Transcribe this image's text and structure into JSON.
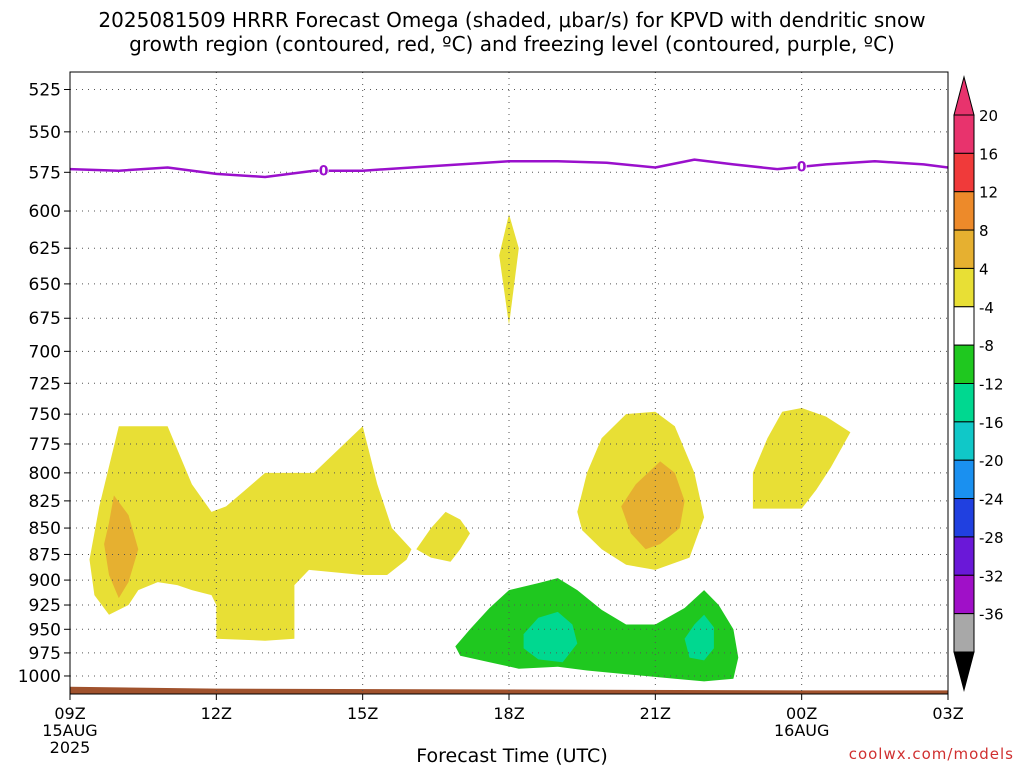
{
  "title_line1": "2025081509 HRRR Forecast Omega (shaded, μbar/s) for KPVD with dendritic snow",
  "title_line2": "growth region (contoured, red, ºC) and freezing level (contoured, purple, ºC)",
  "credit": "coolwx.com/models",
  "chart_data": {
    "type": "time-height contour",
    "xlabel": "Forecast Time (UTC)",
    "ylabel": "",
    "x_ticks": [
      "09Z",
      "12Z",
      "15Z",
      "18Z",
      "21Z",
      "00Z",
      "03Z"
    ],
    "x_tick_hours": [
      0,
      3,
      6,
      9,
      12,
      15,
      18
    ],
    "x_date_labels": [
      {
        "hour": 0,
        "lines": [
          "15AUG",
          "2025"
        ]
      },
      {
        "hour": 15,
        "lines": [
          "16AUG"
        ]
      }
    ],
    "xlim_hours": [
      0,
      18
    ],
    "y_ticks": [
      525,
      550,
      575,
      600,
      625,
      650,
      675,
      700,
      725,
      750,
      775,
      800,
      825,
      850,
      875,
      900,
      925,
      950,
      975,
      1000
    ],
    "ylim": [
      515,
      1020
    ],
    "y_scale": "log-pressure (inverted)",
    "grid": true,
    "colorbar": {
      "labels": [
        "20",
        "16",
        "12",
        "8",
        "4",
        "-4",
        "-8",
        "-12",
        "-16",
        "-20",
        "-24",
        "-28",
        "-32",
        "-36"
      ],
      "colors": [
        "#e8336d",
        "#f03a3a",
        "#ed8a2a",
        "#e6b030",
        "#e8df35",
        "#ffffff",
        "#1fc81f",
        "#00d890",
        "#10c8c8",
        "#1a90f0",
        "#2040e0",
        "#6a18d8",
        "#a010c8",
        "#a8a8a8"
      ]
    },
    "freezing_level": {
      "color": "#9a10cc",
      "label": "0",
      "points": [
        [
          0,
          573
        ],
        [
          1,
          574
        ],
        [
          2,
          572
        ],
        [
          3,
          576
        ],
        [
          4,
          578
        ],
        [
          5,
          574
        ],
        [
          6,
          574
        ],
        [
          7,
          572
        ],
        [
          8,
          570
        ],
        [
          9,
          568
        ],
        [
          10,
          568
        ],
        [
          11,
          569
        ],
        [
          12,
          572
        ],
        [
          12.8,
          567
        ],
        [
          13.6,
          570
        ],
        [
          14.5,
          573
        ],
        [
          15.5,
          570
        ],
        [
          16.5,
          568
        ],
        [
          17.5,
          570
        ],
        [
          18,
          572
        ]
      ],
      "label_hours": [
        5.2,
        15
      ]
    },
    "omega_regions": [
      {
        "value_range": "4 to 8",
        "color": "#e8df35",
        "points": [
          [
            0.4,
            880
          ],
          [
            0.6,
            830
          ],
          [
            1,
            760
          ],
          [
            2,
            760
          ],
          [
            2.5,
            810
          ],
          [
            2.9,
            835
          ],
          [
            3.2,
            830
          ],
          [
            3.6,
            815
          ],
          [
            4,
            800
          ],
          [
            5,
            800
          ],
          [
            6,
            760
          ],
          [
            6.3,
            810
          ],
          [
            6.6,
            850
          ],
          [
            7,
            870
          ],
          [
            6.9,
            880
          ],
          [
            6.5,
            895
          ],
          [
            6,
            895
          ],
          [
            4.9,
            890
          ],
          [
            4.6,
            905
          ],
          [
            4.6,
            960
          ],
          [
            4,
            962
          ],
          [
            3,
            960
          ],
          [
            3,
            925
          ],
          [
            2.9,
            915
          ],
          [
            2.5,
            910
          ],
          [
            2.2,
            905
          ],
          [
            1.8,
            902
          ],
          [
            1.4,
            910
          ],
          [
            1.2,
            925
          ],
          [
            0.8,
            935
          ],
          [
            0.5,
            915
          ]
        ]
      },
      {
        "value_range": "4 to 8",
        "color": "#e8df35",
        "points": [
          [
            7.1,
            870
          ],
          [
            7.4,
            850
          ],
          [
            7.7,
            835
          ],
          [
            8,
            842
          ],
          [
            8.2,
            855
          ],
          [
            8,
            870
          ],
          [
            7.8,
            882
          ],
          [
            7.4,
            878
          ]
        ]
      },
      {
        "value_range": "4 to 8",
        "color": "#e8df35",
        "points": [
          [
            9,
            602
          ],
          [
            9.2,
            625
          ],
          [
            9,
            680
          ],
          [
            8.8,
            630
          ]
        ]
      },
      {
        "value_range": "4 to 8",
        "color": "#e8df35",
        "points": [
          [
            10.4,
            835
          ],
          [
            10.6,
            800
          ],
          [
            10.9,
            770
          ],
          [
            11.4,
            750
          ],
          [
            12,
            748
          ],
          [
            12.4,
            760
          ],
          [
            12.8,
            800
          ],
          [
            13,
            840
          ],
          [
            12.7,
            878
          ],
          [
            12,
            890
          ],
          [
            11.4,
            885
          ],
          [
            10.9,
            870
          ],
          [
            10.5,
            852
          ]
        ]
      },
      {
        "value_range": "4 to 8",
        "color": "#e8df35",
        "points": [
          [
            14,
            800
          ],
          [
            14.3,
            770
          ],
          [
            14.6,
            748
          ],
          [
            15,
            745
          ],
          [
            15.5,
            752
          ],
          [
            16,
            765
          ],
          [
            15.6,
            795
          ],
          [
            15.3,
            815
          ],
          [
            15,
            832
          ],
          [
            14,
            832
          ]
        ]
      },
      {
        "value_range": "8 to 12",
        "color": "#e6b030",
        "points": [
          [
            0.8,
            845
          ],
          [
            0.9,
            820
          ],
          [
            1.2,
            838
          ],
          [
            1.4,
            870
          ],
          [
            1.2,
            902
          ],
          [
            1,
            918
          ],
          [
            0.8,
            895
          ],
          [
            0.7,
            865
          ]
        ]
      },
      {
        "value_range": "8 to 12",
        "color": "#e6b030",
        "points": [
          [
            11.3,
            830
          ],
          [
            11.6,
            810
          ],
          [
            12.1,
            790
          ],
          [
            12.4,
            800
          ],
          [
            12.6,
            825
          ],
          [
            12.5,
            850
          ],
          [
            12.1,
            865
          ],
          [
            11.8,
            870
          ],
          [
            11.5,
            855
          ]
        ]
      },
      {
        "value_range": "-4 to -8",
        "color": "#1fc81f",
        "points": [
          [
            7.9,
            968
          ],
          [
            8.2,
            950
          ],
          [
            8.6,
            928
          ],
          [
            9,
            910
          ],
          [
            9.6,
            903
          ],
          [
            10,
            898
          ],
          [
            10.4,
            910
          ],
          [
            10.9,
            930
          ],
          [
            11.4,
            945
          ],
          [
            12,
            945
          ],
          [
            12.6,
            928
          ],
          [
            13,
            910
          ],
          [
            13.3,
            925
          ],
          [
            13.6,
            950
          ],
          [
            13.7,
            980
          ],
          [
            13.6,
            1003
          ],
          [
            13,
            1006
          ],
          [
            12.4,
            1003
          ],
          [
            11.4,
            998
          ],
          [
            10.6,
            994
          ],
          [
            10,
            990
          ],
          [
            9.2,
            992
          ],
          [
            8.6,
            985
          ],
          [
            8,
            978
          ]
        ]
      },
      {
        "value_range": "-8 to -12",
        "color": "#00d890",
        "points": [
          [
            9.3,
            955
          ],
          [
            9.6,
            938
          ],
          [
            10,
            932
          ],
          [
            10.3,
            945
          ],
          [
            10.4,
            965
          ],
          [
            10.1,
            985
          ],
          [
            9.6,
            982
          ],
          [
            9.3,
            970
          ]
        ]
      },
      {
        "value_range": "-8 to -12",
        "color": "#00d890",
        "points": [
          [
            12.6,
            960
          ],
          [
            12.8,
            945
          ],
          [
            13,
            935
          ],
          [
            13.2,
            948
          ],
          [
            13.2,
            970
          ],
          [
            13,
            983
          ],
          [
            12.7,
            980
          ]
        ]
      }
    ],
    "ground": {
      "color": "#a0522d",
      "points": [
        [
          0,
          1012
        ],
        [
          3,
          1014
        ],
        [
          9,
          1015
        ],
        [
          15,
          1016
        ],
        [
          18,
          1016
        ]
      ]
    }
  }
}
